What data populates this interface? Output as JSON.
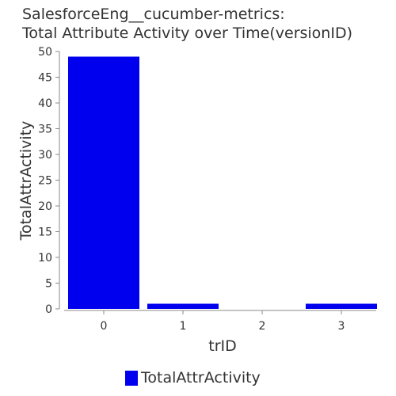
{
  "chart_data": {
    "type": "bar",
    "title_lines": [
      "SalesforceEng__cucumber-metrics:",
      "Total Attribute Activity over Time(versionID)"
    ],
    "xlabel": "trID",
    "ylabel": "TotalAttrActivity",
    "categories": [
      "0",
      "1",
      "2",
      "3"
    ],
    "series": [
      {
        "name": "TotalAttrActivity",
        "values": [
          49,
          1,
          0,
          1
        ],
        "color": "#0000ee"
      }
    ],
    "ylim": [
      0,
      50
    ],
    "yticks": [
      "0",
      "5",
      "10",
      "15",
      "20",
      "25",
      "30",
      "35",
      "40",
      "45",
      "50"
    ],
    "grid": false,
    "legend_position": "bottom-center"
  }
}
